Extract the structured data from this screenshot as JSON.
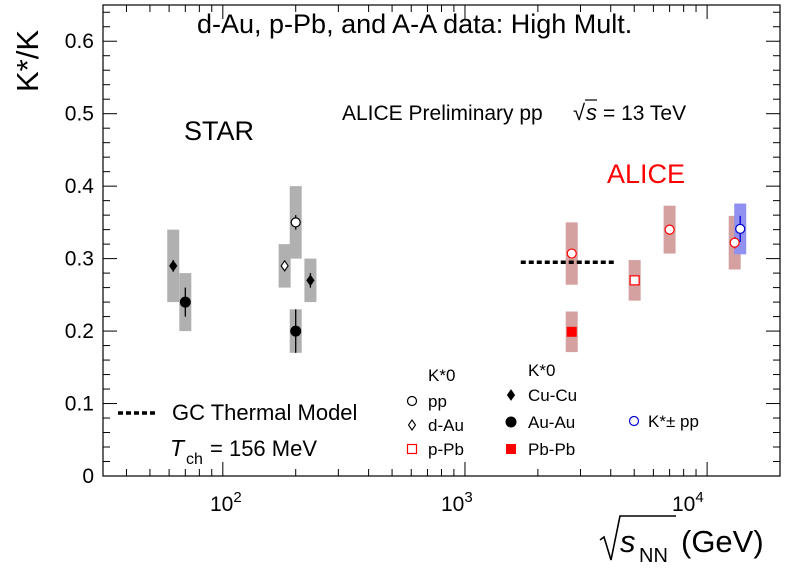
{
  "chart_data": {
    "type": "scatter",
    "title": "d-Au, p-Pb, and A-A data: High Mult.",
    "xlabel": "(GeV)",
    "xlabel_symbol": "s",
    "xlabel_subscript": "NN",
    "ylabel": "K*/K",
    "xscale": "log",
    "xlim": [
      32,
      20000
    ],
    "ylim": [
      0,
      0.65
    ],
    "yticks": [
      "0",
      "0.1",
      "0.2",
      "0.3",
      "0.4",
      "0.5",
      "0.6"
    ],
    "xticks": [
      "10",
      "10",
      "10"
    ],
    "xtick_exponents": [
      "2",
      "3",
      "4"
    ],
    "annotations": {
      "star": "STAR",
      "alice": "ALICE",
      "alice_prelim": "ALICE Preliminary pp",
      "alice_prelim_energy": "= 13 TeV",
      "sqrt_symbol": "√",
      "s_symbol": "s"
    },
    "legend": {
      "gc_model": "GC Thermal Model",
      "gc_temp_symbol": "T",
      "gc_temp_sub": "ch",
      "gc_temp_value": "= 156 MeV",
      "kstar0_header": "K*0",
      "kstar0_header2": "K*0",
      "entries": [
        {
          "label": "pp",
          "marker": "open-circle",
          "color": "#000000"
        },
        {
          "label": "d-Au",
          "marker": "open-diamond",
          "color": "#000000"
        },
        {
          "label": "p-Pb",
          "marker": "open-square",
          "color": "#ff0000"
        },
        {
          "label": "Cu-Cu",
          "marker": "filled-diamond",
          "color": "#000000"
        },
        {
          "label": "Au-Au",
          "marker": "filled-circle",
          "color": "#000000"
        },
        {
          "label": "Pb-Pb",
          "marker": "filled-square",
          "color": "#ff0000"
        },
        {
          "label": "K*± pp",
          "marker": "open-circle",
          "color": "#0000cc"
        }
      ]
    },
    "gc_thermal_model": {
      "y": 0.295,
      "x_range": [
        1700,
        4200
      ]
    },
    "series": [
      {
        "name": "Cu-Cu",
        "marker": "filled-diamond",
        "color": "#000000",
        "sys_color": "#b0b0b0",
        "points": [
          {
            "x": 62.4,
            "y": 0.29,
            "stat": 0.008,
            "sys": 0.05
          },
          {
            "x": 230,
            "y": 0.27,
            "stat": 0.01,
            "sys": 0.03
          }
        ]
      },
      {
        "name": "Au-Au",
        "marker": "filled-circle",
        "color": "#000000",
        "sys_color": "#b0b0b0",
        "points": [
          {
            "x": 70,
            "y": 0.24,
            "stat": 0.02,
            "sys": 0.04
          },
          {
            "x": 200,
            "y": 0.2,
            "stat": 0.03,
            "sys": 0.03
          }
        ]
      },
      {
        "name": "d-Au",
        "marker": "open-diamond",
        "color": "#000000",
        "sys_color": "#b0b0b0",
        "points": [
          {
            "x": 180,
            "y": 0.29,
            "stat": 0.005,
            "sys": 0.03
          }
        ]
      },
      {
        "name": "pp",
        "marker": "open-circle",
        "color": "#000000",
        "sys_color": "#b0b0b0",
        "points": [
          {
            "x": 200,
            "y": 0.35,
            "stat": 0.01,
            "sys": 0.05
          }
        ]
      },
      {
        "name": "pp (ALICE)",
        "marker": "open-circle",
        "color": "#ff0000",
        "sys_color": "#d4a0a0",
        "points": [
          {
            "x": 2760,
            "y": 0.307,
            "stat": 0.006,
            "sys": 0.043
          },
          {
            "x": 7000,
            "y": 0.34,
            "stat": 0.005,
            "sys": 0.033
          },
          {
            "x": 13000,
            "y": 0.322,
            "stat": 0.008,
            "sys": 0.037
          }
        ]
      },
      {
        "name": "p-Pb",
        "marker": "open-square",
        "color": "#ff0000",
        "sys_color": "#d4a0a0",
        "points": [
          {
            "x": 5020,
            "y": 0.27,
            "stat": 0.005,
            "sys": 0.028
          }
        ]
      },
      {
        "name": "Pb-Pb",
        "marker": "filled-square",
        "color": "#ff0000",
        "sys_color": "#d4a0a0",
        "points": [
          {
            "x": 2760,
            "y": 0.199,
            "stat": 0.005,
            "sys": 0.028
          }
        ]
      },
      {
        "name": "K*± pp",
        "marker": "open-circle",
        "color": "#0000cc",
        "sys_color": "#9090f0",
        "points": [
          {
            "x": 13700,
            "y": 0.341,
            "stat": 0.018,
            "sys": 0.035
          }
        ]
      }
    ]
  }
}
